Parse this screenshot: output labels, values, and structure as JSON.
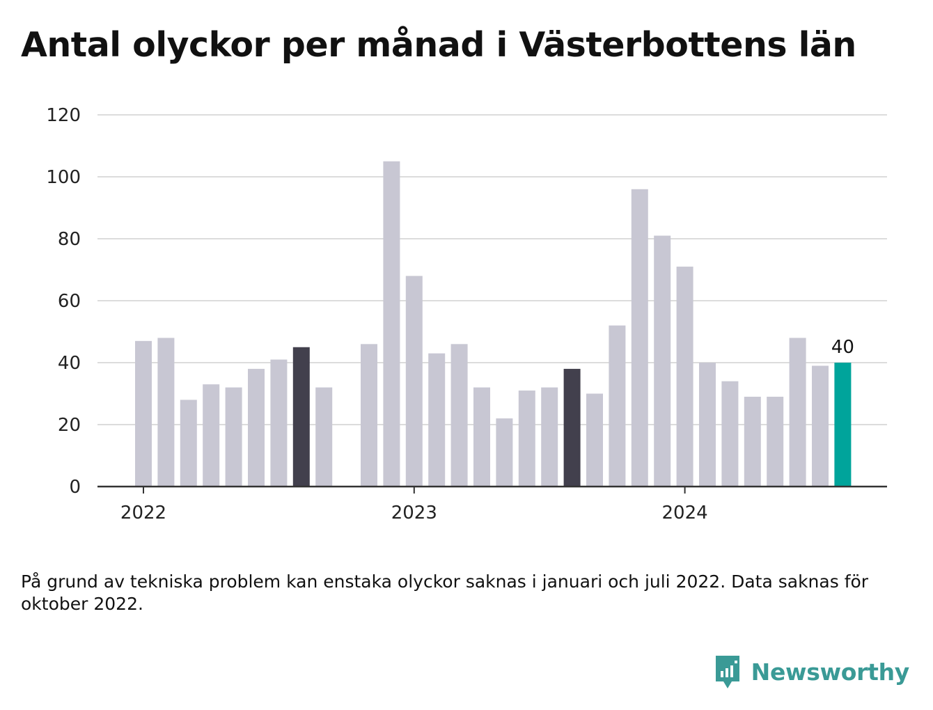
{
  "title": "Antal olyckor per månad i Västerbottens län",
  "note": "På grund av tekniska problem kan enstaka olyckor saknas i januari och juli 2022. Data saknas för oktober 2022.",
  "brand": {
    "name": "Newsworthy",
    "logo_icon": "newsworthy-logo-icon"
  },
  "colors": {
    "default": "#c8c7d3",
    "highlight": "#42404d",
    "latest": "#00a49b",
    "grid": "#dcdcdc",
    "axis": "#333333"
  },
  "chart_data": {
    "type": "bar",
    "x": [
      "2022-01",
      "2022-02",
      "2022-03",
      "2022-04",
      "2022-05",
      "2022-06",
      "2022-07",
      "2022-08",
      "2022-09",
      "2022-10",
      "2022-11",
      "2022-12",
      "2023-01",
      "2023-02",
      "2023-03",
      "2023-04",
      "2023-05",
      "2023-06",
      "2023-07",
      "2023-08",
      "2023-09",
      "2023-10",
      "2023-11",
      "2023-12",
      "2024-01",
      "2024-02",
      "2024-03",
      "2024-04",
      "2024-05",
      "2024-06",
      "2024-07",
      "2024-08"
    ],
    "values": [
      47,
      48,
      28,
      33,
      32,
      38,
      41,
      45,
      32,
      null,
      46,
      105,
      68,
      43,
      46,
      32,
      22,
      31,
      32,
      38,
      30,
      52,
      96,
      81,
      71,
      40,
      34,
      29,
      29,
      48,
      39,
      40
    ],
    "highlight": [
      "2022-08",
      "2023-08"
    ],
    "latest": "2024-08",
    "data_labels": {
      "2024-08": "40"
    },
    "yticks": [
      "0",
      "20",
      "40",
      "60",
      "80",
      "100",
      "120"
    ],
    "ylim": [
      0,
      120
    ],
    "xticks": [
      {
        "at": "2022-01",
        "label": "2022"
      },
      {
        "at": "2023-01",
        "label": "2023"
      },
      {
        "at": "2024-01",
        "label": "2024"
      }
    ],
    "grid": true
  }
}
